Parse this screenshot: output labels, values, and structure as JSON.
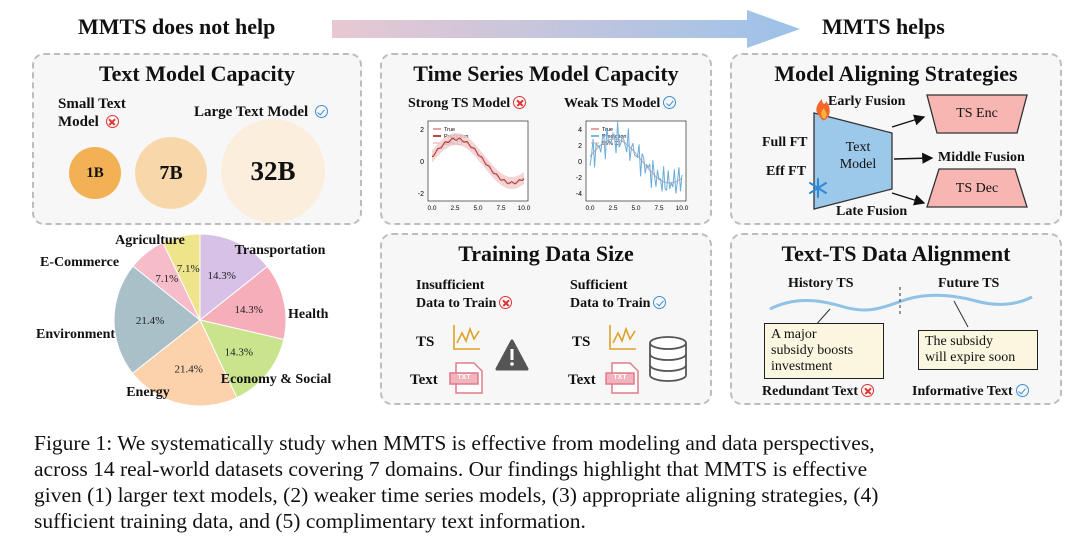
{
  "headers": {
    "left": "MMTS does not help",
    "right": "MMTS helps"
  },
  "text_model_capacity": {
    "title": "Text Model Capacity",
    "small_label_1": "Small Text",
    "small_label_2": "Model",
    "large_label": "Large Text Model",
    "bubbles": [
      "1B",
      "7B",
      "32B"
    ]
  },
  "ts_model_capacity": {
    "title": "Time Series Model Capacity",
    "strong": "Strong TS Model",
    "weak": "Weak TS Model",
    "legend": [
      "True",
      "Prediction",
      "95% CI"
    ],
    "plot1_yticks": [
      "2",
      "0",
      "-2"
    ],
    "plot2_yticks": [
      "4",
      "2",
      "0",
      "-2",
      "-4"
    ],
    "xticks": [
      "0.0",
      "2.5",
      "5.0",
      "7.5",
      "10.0"
    ]
  },
  "aligning": {
    "title": "Model Aligning Strategies",
    "early": "Early Fusion",
    "middle": "Middle Fusion",
    "late": "Late Fusion",
    "full_ft": "Full FT",
    "eff_ft": "Eff FT",
    "text_model_1": "Text",
    "text_model_2": "Model",
    "ts_enc": "TS Enc",
    "ts_dec": "TS Dec"
  },
  "pie": {
    "title": "Agriculture",
    "colors": [
      "#d7c1e6",
      "#f7aebb",
      "#c9e48d",
      "#fbd2ab",
      "#a9c0c8",
      "#f7bcc9",
      "#eee48a"
    ]
  },
  "chart_data": {
    "type": "pie",
    "categories": [
      "Transportation",
      "Health",
      "Economy & Social",
      "Energy",
      "Environment",
      "E-Commerce",
      "Agriculture"
    ],
    "values": [
      14.3,
      14.3,
      14.3,
      21.4,
      21.4,
      7.1,
      7.1
    ],
    "labels": [
      "14.3%",
      "14.3%",
      "14.3%",
      "21.4%",
      "21.4%",
      "7.1%",
      "7.1%"
    ]
  },
  "training_data": {
    "title": "Training Data Size",
    "insufficient_1": "Insufficient",
    "insufficient_2": "Data to Train",
    "sufficient_1": "Sufficient",
    "sufficient_2": "Data to Train",
    "ts": "TS",
    "text": "Text",
    "txt": "TXT"
  },
  "alignment": {
    "title": "Text-TS Data Alignment",
    "history": "History TS",
    "future": "Future TS",
    "note_left_1": "A major",
    "note_left_2": "subsidy boosts",
    "note_left_3": "investment",
    "note_right_1": "The subsidy",
    "note_right_2": "will expire soon",
    "redundant": "Redundant Text",
    "informative": "Informative Text"
  },
  "caption": {
    "line1": "Figure 1: We systematically study when MMTS is effective from modeling and data perspectives,",
    "line2": "across 14 real-world datasets covering 7 domains. Our findings highlight that MMTS is effective",
    "line3": "given (1) larger text models, (2) weaker time series models, (3) appropriate aligning strategies, (4)",
    "line4": "sufficient training data, and (5) complimentary text information."
  }
}
